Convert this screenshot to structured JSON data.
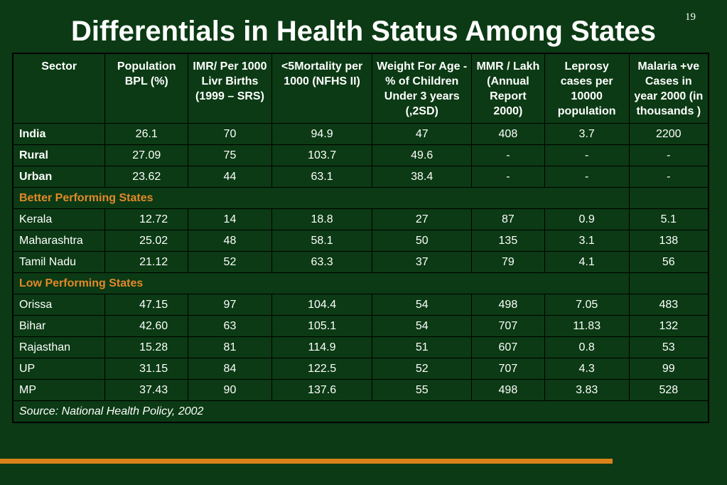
{
  "page_number": "19",
  "title": "Differentials in Health Status Among States",
  "headers": [
    "Sector",
    "Population BPL (%)",
    "IMR/ Per 1000 Livr Births (1999 – SRS)",
    "<5Mortality per 1000 (NFHS II)",
    "Weight For Age - % of Children Under 3 years (,2SD)",
    "MMR / Lakh (Annual Report 2000)",
    "Leprosy cases per 10000 population",
    "Malaria +ve Cases in year 2000 (in thousands )"
  ],
  "national_rows": [
    {
      "label": "India",
      "values": [
        "26.1",
        "70",
        "94.9",
        "47",
        "408",
        "3.7",
        "2200"
      ]
    },
    {
      "label": "Rural",
      "values": [
        "27.09",
        "75",
        "103.7",
        "49.6",
        "-",
        "-",
        "-"
      ]
    },
    {
      "label": "Urban",
      "values": [
        "23.62",
        "44",
        "63.1",
        "38.4",
        "-",
        "-",
        "-"
      ]
    }
  ],
  "better_section": "Better Performing States",
  "better_rows": [
    {
      "label": "Kerala",
      "values": [
        "12.72",
        "14",
        "18.8",
        "27",
        "87",
        "0.9",
        "5.1"
      ]
    },
    {
      "label": "Maharashtra",
      "values": [
        "25.02",
        "48",
        "58.1",
        "50",
        "135",
        "3.1",
        "138"
      ]
    },
    {
      "label": "Tamil Nadu",
      "values": [
        "21.12",
        "52",
        "63.3",
        "37",
        "79",
        "4.1",
        "56"
      ]
    }
  ],
  "low_section": "Low Performing States",
  "low_rows": [
    {
      "label": "Orissa",
      "values": [
        "47.15",
        "97",
        "104.4",
        "54",
        "498",
        "7.05",
        "483"
      ]
    },
    {
      "label": "Bihar",
      "values": [
        "42.60",
        "63",
        "105.1",
        "54",
        "707",
        "11.83",
        "132"
      ]
    },
    {
      "label": "Rajasthan",
      "values": [
        "15.28",
        "81",
        "114.9",
        "51",
        "607",
        "0.8",
        "53"
      ]
    },
    {
      "label": "UP",
      "values": [
        "31.15",
        "84",
        "122.5",
        "52",
        "707",
        "4.3",
        "99"
      ]
    },
    {
      "label": "MP",
      "values": [
        "37.43",
        "90",
        "137.6",
        "55",
        "498",
        "3.83",
        "528"
      ]
    }
  ],
  "source": "Source: National Health Policy, 2002",
  "colors": {
    "background": "#0b3a14",
    "section_heading": "#e3882a",
    "accent_bar": "#d98319"
  }
}
